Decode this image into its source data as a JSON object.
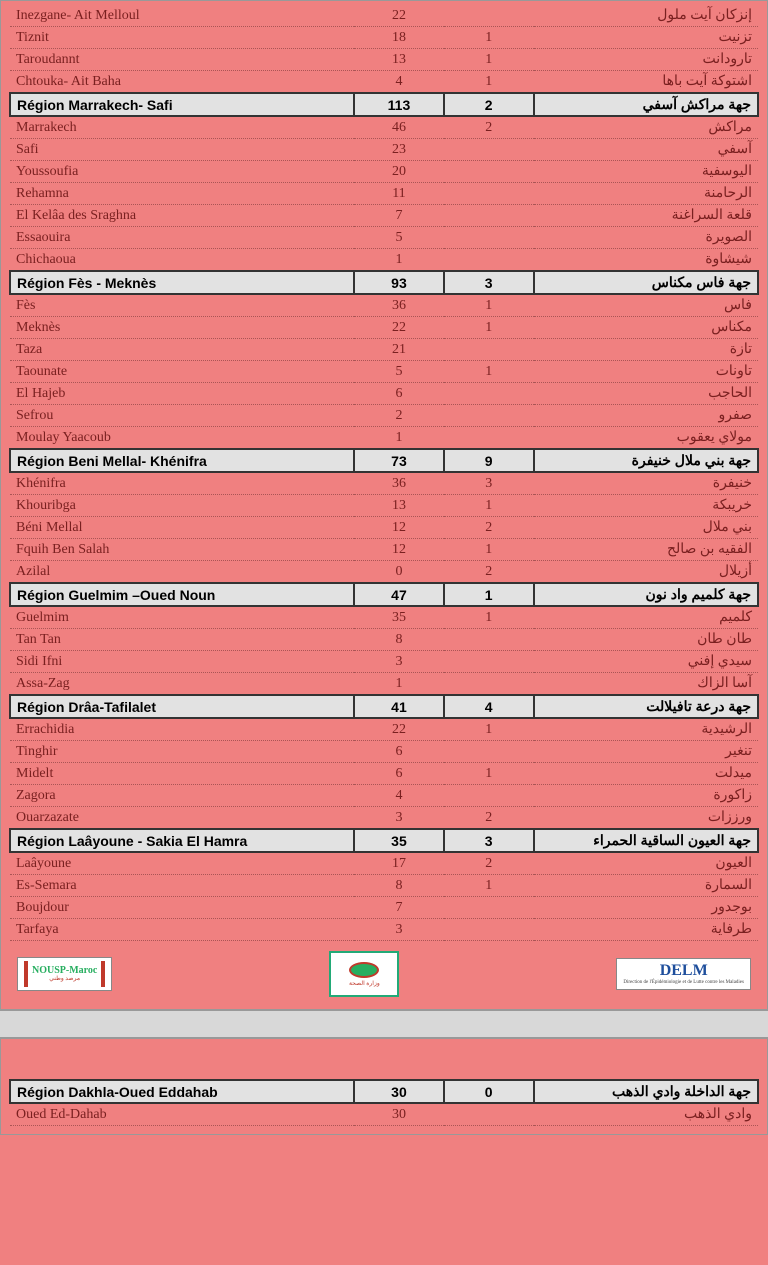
{
  "pre_rows": [
    {
      "fr": "Inezgane- Ait Melloul",
      "n1": "22",
      "n2": "",
      "ar": "إنزكان آيت ملول"
    },
    {
      "fr": "Tiznit",
      "n1": "18",
      "n2": "1",
      "ar": "تزنيت"
    },
    {
      "fr": "Taroudannt",
      "n1": "13",
      "n2": "1",
      "ar": "تارودانت"
    },
    {
      "fr": "Chtouka- Ait Baha",
      "n1": "4",
      "n2": "1",
      "ar": "اشتوكة آيت باها"
    }
  ],
  "sections": [
    {
      "region": {
        "fr": "Région Marrakech- Safi",
        "n1": "113",
        "n2": "2",
        "ar": "جهة مراكش آسفي"
      },
      "rows": [
        {
          "fr": "Marrakech",
          "n1": "46",
          "n2": "2",
          "ar": "مراكش"
        },
        {
          "fr": "Safi",
          "n1": "23",
          "n2": "",
          "ar": "آسفي"
        },
        {
          "fr": "Youssoufia",
          "n1": "20",
          "n2": "",
          "ar": "اليوسفية"
        },
        {
          "fr": "Rehamna",
          "n1": "11",
          "n2": "",
          "ar": "الرحامنة"
        },
        {
          "fr": "El Kelâa des  Sraghna",
          "n1": "7",
          "n2": "",
          "ar": "قلعة السراغنة"
        },
        {
          "fr": "Essaouira",
          "n1": "5",
          "n2": "",
          "ar": "الصويرة"
        },
        {
          "fr": "Chichaoua",
          "n1": "1",
          "n2": "",
          "ar": "شيشاوة"
        }
      ]
    },
    {
      "region": {
        "fr": "Région Fès - Meknès",
        "n1": "93",
        "n2": "3",
        "ar": "جهة فاس مكناس"
      },
      "rows": [
        {
          "fr": "Fès",
          "n1": "36",
          "n2": "1",
          "ar": "فاس"
        },
        {
          "fr": "Meknès",
          "n1": "22",
          "n2": "1",
          "ar": "مكناس"
        },
        {
          "fr": "Taza",
          "n1": "21",
          "n2": "",
          "ar": "تازة"
        },
        {
          "fr": "Taounate",
          "n1": "5",
          "n2": "1",
          "ar": "تاونات"
        },
        {
          "fr": "El  Hajeb",
          "n1": "6",
          "n2": "",
          "ar": "الحاجب"
        },
        {
          "fr": "Sefrou",
          "n1": "2",
          "n2": "",
          "ar": "صفرو"
        },
        {
          "fr": "Moulay Yaacoub",
          "n1": "1",
          "n2": "",
          "ar": "مولاي يعقوب"
        }
      ]
    },
    {
      "region": {
        "fr": "Région Beni Mellal- Khénifra",
        "n1": "73",
        "n2": "9",
        "ar": "جهة بني ملال خنيفرة"
      },
      "rows": [
        {
          "fr": "Khénifra",
          "n1": "36",
          "n2": "3",
          "ar": "خنيفرة"
        },
        {
          "fr": "Khouribga",
          "n1": "13",
          "n2": "1",
          "ar": "خريبكة"
        },
        {
          "fr": "Béni Mellal",
          "n1": "12",
          "n2": "2",
          "ar": "بني ملال"
        },
        {
          "fr": "Fquih Ben Salah",
          "n1": "12",
          "n2": "1",
          "ar": "الفقيه بن صالح"
        },
        {
          "fr": "Azilal",
          "n1": "0",
          "n2": "2",
          "ar": "أزيلال"
        }
      ]
    },
    {
      "region": {
        "fr": "Région Guelmim –Oued Noun",
        "n1": "47",
        "n2": "1",
        "ar": "جهة كلميم واد نون"
      },
      "rows": [
        {
          "fr": "Guelmim",
          "n1": "35",
          "n2": "1",
          "ar": "كلميم"
        },
        {
          "fr": "Tan Tan",
          "n1": "8",
          "n2": "",
          "ar": "طان طان"
        },
        {
          "fr": "Sidi Ifni",
          "n1": "3",
          "n2": "",
          "ar": "سيدي إفني"
        },
        {
          "fr": "Assa-Zag",
          "n1": "1",
          "n2": "",
          "ar": "آسا الزاك"
        }
      ]
    },
    {
      "region": {
        "fr": "Région Drâa-Tafilalet",
        "n1": "41",
        "n2": "4",
        "ar": "جهة درعة تافيلالت"
      },
      "rows": [
        {
          "fr": "Errachidia",
          "n1": "22",
          "n2": "1",
          "ar": "الرشيدية"
        },
        {
          "fr": "Tinghir",
          "n1": "6",
          "n2": "",
          "ar": "تنغير"
        },
        {
          "fr": "Midelt",
          "n1": "6",
          "n2": "1",
          "ar": "ميدلت"
        },
        {
          "fr": "Zagora",
          "n1": "4",
          "n2": "",
          "ar": "زاكورة"
        },
        {
          "fr": "Ouarzazate",
          "n1": "3",
          "n2": "2",
          "ar": "ورززات"
        }
      ]
    },
    {
      "region": {
        "fr": "Région Laâyoune - Sakia El Hamra",
        "n1": "35",
        "n2": "3",
        "ar": "جهة العيون الساقية الحمراء"
      },
      "rows": [
        {
          "fr": "Laâyoune",
          "n1": "17",
          "n2": "2",
          "ar": "العيون"
        },
        {
          "fr": "Es-Semara",
          "n1": "8",
          "n2": "1",
          "ar": "السمارة"
        },
        {
          "fr": "Boujdour",
          "n1": "7",
          "n2": "",
          "ar": "بوجدور"
        },
        {
          "fr": "Tarfaya",
          "n1": "3",
          "n2": "",
          "ar": "طرفاية"
        }
      ]
    }
  ],
  "page2_sections": [
    {
      "region": {
        "fr": "Région Dakhla-Oued Eddahab",
        "n1": "30",
        "n2": "0",
        "ar": "جهة الداخلة وادي الذهب"
      },
      "rows": [
        {
          "fr": "Oued Ed-Dahab",
          "n1": "30",
          "n2": "",
          "ar": "وادي الذهب"
        }
      ]
    }
  ],
  "logos": {
    "left": "NOUSP-Maroc",
    "right": "DELM",
    "right_sub": "Direction de l'Épidémiologie\net de Lutte contre les Maladies"
  }
}
